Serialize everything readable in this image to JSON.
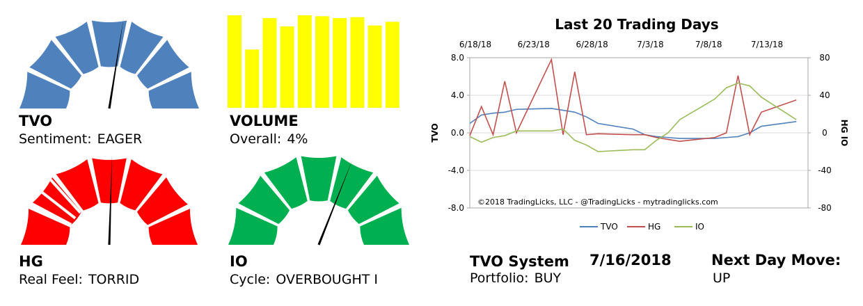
{
  "gauges": {
    "tvo": {
      "title": "TVO",
      "sub_label": "Sentiment:",
      "sub_value": "EAGER",
      "color": "#4f81bd",
      "needle_fraction": 0.55
    },
    "volume": {
      "title": "VOLUME",
      "sub_label": "Overall:",
      "sub_value": "4%",
      "color": "#ffff00",
      "bars": [
        1.0,
        0.63,
        0.97,
        0.88,
        1.0,
        0.99,
        0.97,
        0.98,
        0.89,
        0.93
      ]
    },
    "hg": {
      "title": "HG",
      "sub_label": "Real Feel:",
      "sub_value": "TORRID",
      "color": "#ff0000",
      "needle_fraction": 0.51
    },
    "io": {
      "title": "IO",
      "sub_label": "Cycle:",
      "sub_value": "OVERBOUGHT I",
      "color": "#00b050",
      "needle_fraction": 0.62
    }
  },
  "chart_data": {
    "type": "line",
    "title": "Last 20 Trading Days",
    "top_tick_labels": [
      "6/18/18",
      "6/23/18",
      "6/28/18",
      "7/3/18",
      "7/8/18",
      "7/13/18"
    ],
    "top_tick_days": [
      0,
      5,
      10,
      15,
      20,
      25
    ],
    "x_range": [
      0,
      29
    ],
    "y_left": {
      "label": "TVO",
      "ticks": [
        "8.0",
        "4.0",
        "0.0",
        "-4.0",
        "-8.0"
      ],
      "range": [
        -8,
        8
      ]
    },
    "y_right": {
      "label": "HG IO",
      "ticks": [
        "80",
        "40",
        "0",
        "-40",
        "-80"
      ],
      "range": [
        -80,
        80
      ]
    },
    "watermark": "©2018 TradingLicks, LLC - @TradingLicks - mytradinglicks.com",
    "legend_position": "bottom",
    "series": [
      {
        "name": "TVO",
        "axis": "left",
        "color": "#4f81bd",
        "x": [
          0,
          1,
          2,
          3,
          4,
          7,
          8,
          9,
          10,
          11,
          14,
          15,
          16,
          17,
          18,
          21,
          22,
          23,
          24,
          25,
          28
        ],
        "y": [
          1.0,
          1.9,
          2.1,
          2.2,
          2.5,
          2.6,
          2.4,
          2.2,
          1.7,
          1.0,
          0.4,
          -0.2,
          -0.4,
          -0.5,
          -0.6,
          -0.6,
          -0.5,
          -0.4,
          0.0,
          0.7,
          1.2
        ]
      },
      {
        "name": "HG",
        "axis": "right",
        "color": "#c0504d",
        "x": [
          0,
          1,
          2,
          3,
          4,
          7,
          8,
          9,
          10,
          11,
          14,
          15,
          16,
          17,
          18,
          21,
          22,
          23,
          24,
          25,
          28
        ],
        "y": [
          -3,
          28,
          -2,
          55,
          0,
          78,
          -2,
          65,
          -2,
          -1,
          -2,
          -2,
          -5,
          -7,
          -9,
          -5,
          0,
          61,
          -2,
          22,
          35
        ]
      },
      {
        "name": "IO",
        "axis": "right",
        "color": "#9bbb59",
        "x": [
          0,
          1,
          2,
          3,
          4,
          7,
          8,
          9,
          10,
          11,
          14,
          15,
          16,
          17,
          18,
          21,
          22,
          23,
          24,
          25,
          28
        ],
        "y": [
          -4,
          -10,
          -5,
          -3,
          2,
          2,
          4,
          -8,
          -13,
          -20,
          -18,
          -18,
          -8,
          0,
          14,
          36,
          48,
          53,
          50,
          38,
          14
        ]
      }
    ]
  },
  "system": {
    "title": "TVO System",
    "date": "7/16/2018",
    "next_day_label": "Next Day Move:",
    "portfolio_label": "Portfolio:",
    "portfolio_value": "BUY",
    "next_day_value": "UP"
  }
}
